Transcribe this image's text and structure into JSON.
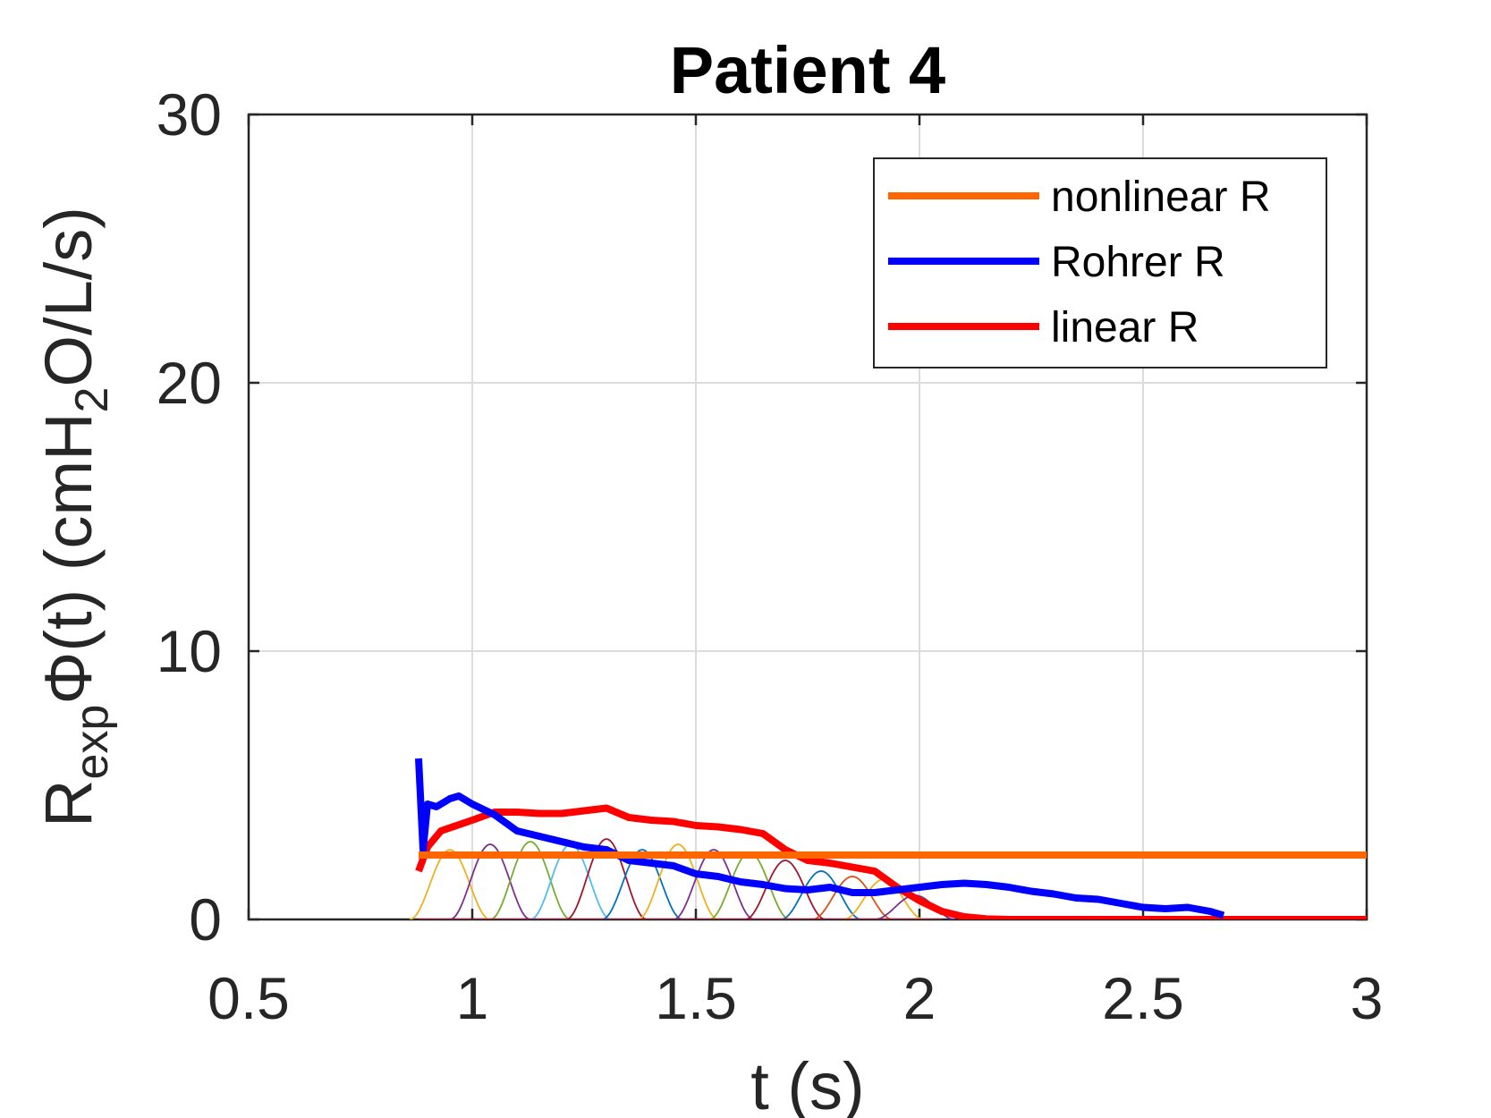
{
  "chart_data": {
    "type": "line",
    "title": "Patient 4",
    "xlabel": "t (s)",
    "ylabel": {
      "main": "R",
      "sub": "exp",
      "rest": "Φ(t) (cmH",
      "sub2": "2",
      "tail": "O/L/s)"
    },
    "xlim": [
      0.5,
      3
    ],
    "ylim": [
      0,
      30
    ],
    "xticks": [
      0.5,
      1,
      1.5,
      2,
      2.5,
      3
    ],
    "xtick_labels": [
      "0.5",
      "1",
      "1.5",
      "2",
      "2.5",
      "3"
    ],
    "yticks": [
      0,
      10,
      20,
      30
    ],
    "ytick_labels": [
      "0",
      "10",
      "20",
      "30"
    ],
    "grid": true,
    "legend_position": "top-right",
    "series": [
      {
        "name": "nonlinear R",
        "color": "#ff6600",
        "x": [
          0.88,
          3.0
        ],
        "y": [
          2.4,
          2.4
        ]
      },
      {
        "name": "Rohrer R",
        "color": "#0000ff",
        "x": [
          0.88,
          0.89,
          0.9,
          0.92,
          0.95,
          0.97,
          1.0,
          1.05,
          1.1,
          1.15,
          1.2,
          1.25,
          1.3,
          1.35,
          1.4,
          1.45,
          1.5,
          1.55,
          1.6,
          1.65,
          1.7,
          1.75,
          1.8,
          1.85,
          1.9,
          1.95,
          2.0,
          2.05,
          2.1,
          2.15,
          2.2,
          2.25,
          2.3,
          2.35,
          2.4,
          2.45,
          2.5,
          2.55,
          2.6,
          2.65,
          2.68
        ],
        "y": [
          6.0,
          2.6,
          4.3,
          4.2,
          4.5,
          4.6,
          4.3,
          3.9,
          3.3,
          3.1,
          2.9,
          2.7,
          2.6,
          2.2,
          2.1,
          2.0,
          1.7,
          1.6,
          1.4,
          1.3,
          1.15,
          1.1,
          1.2,
          1.0,
          1.0,
          1.1,
          1.2,
          1.3,
          1.35,
          1.3,
          1.2,
          1.05,
          0.95,
          0.8,
          0.75,
          0.6,
          0.45,
          0.4,
          0.45,
          0.3,
          0.15
        ]
      },
      {
        "name": "linear R",
        "color": "#ff0000",
        "x": [
          0.88,
          0.9,
          0.93,
          1.0,
          1.05,
          1.1,
          1.15,
          1.2,
          1.25,
          1.3,
          1.35,
          1.4,
          1.45,
          1.5,
          1.55,
          1.6,
          1.65,
          1.7,
          1.75,
          1.8,
          1.85,
          1.9,
          1.95,
          2.0,
          2.05,
          2.1,
          2.15,
          2.2,
          3.0
        ],
        "y": [
          1.8,
          2.7,
          3.3,
          3.7,
          4.0,
          4.0,
          3.95,
          3.95,
          4.05,
          4.15,
          3.8,
          3.7,
          3.65,
          3.5,
          3.45,
          3.35,
          3.2,
          2.6,
          2.2,
          2.1,
          1.95,
          1.8,
          1.2,
          0.7,
          0.3,
          0.1,
          0.02,
          0.0,
          0.0
        ]
      }
    ],
    "basis_peaks": [
      {
        "center": 0.95,
        "height": 2.6,
        "color": "#edb120"
      },
      {
        "center": 1.04,
        "height": 2.8,
        "color": "#7e2f8e"
      },
      {
        "center": 1.13,
        "height": 2.9,
        "color": "#77ac30"
      },
      {
        "center": 1.22,
        "height": 2.8,
        "color": "#4dbeee"
      },
      {
        "center": 1.3,
        "height": 3.0,
        "color": "#a2142f"
      },
      {
        "center": 1.38,
        "height": 2.6,
        "color": "#0072bd"
      },
      {
        "center": 1.46,
        "height": 2.8,
        "color": "#edb120"
      },
      {
        "center": 1.54,
        "height": 2.6,
        "color": "#7e2f8e"
      },
      {
        "center": 1.62,
        "height": 2.5,
        "color": "#77ac30"
      },
      {
        "center": 1.7,
        "height": 2.2,
        "color": "#a2142f"
      },
      {
        "center": 1.78,
        "height": 1.8,
        "color": "#0072bd"
      },
      {
        "center": 1.85,
        "height": 1.6,
        "color": "#d95319"
      },
      {
        "center": 1.92,
        "height": 1.5,
        "color": "#edb120"
      },
      {
        "center": 1.99,
        "height": 0.9,
        "color": "#7e2f8e"
      }
    ]
  }
}
